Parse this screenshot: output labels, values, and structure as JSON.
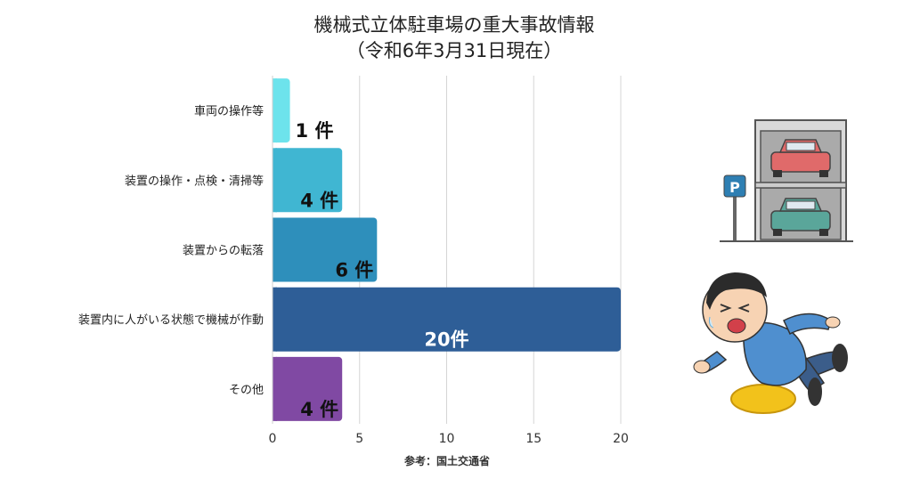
{
  "title": "機械式立体駐車場の重大事故情報",
  "subtitle": "（令和6年3月31日現在）",
  "source": "参考：国土交通省",
  "illustrations": {
    "parking": "parking-garage-illustration",
    "person": "falling-person-illustration"
  },
  "chart_data": {
    "type": "bar",
    "orientation": "horizontal",
    "title": "機械式立体駐車場の重大事故情報",
    "subtitle": "（令和6年3月31日現在）",
    "categories": [
      "車両の操作等",
      "装置の操作・点検・清掃等",
      "装置からの転落",
      "装置内に人がいる状態で機械が作動",
      "その他"
    ],
    "values": [
      1,
      4,
      6,
      20,
      4
    ],
    "data_labels": [
      "1 件",
      "4 件",
      "6 件",
      "20件",
      "4 件"
    ],
    "colors": [
      "#6de3ec",
      "#40b6d2",
      "#2e8fbb",
      "#2e5e97",
      "#8049a3"
    ],
    "xlim": [
      0,
      20
    ],
    "xticks": [
      0,
      5,
      10,
      15,
      20
    ],
    "grid": true,
    "legend": "none"
  }
}
